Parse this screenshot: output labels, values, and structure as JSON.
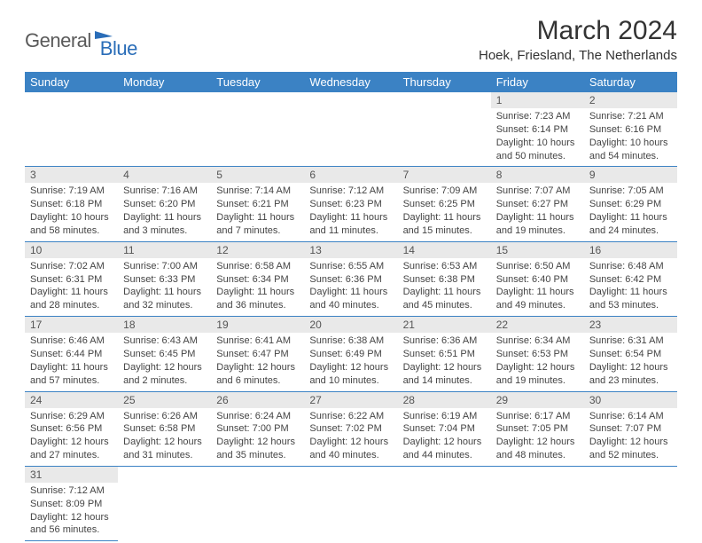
{
  "logo": {
    "text_a": "General",
    "text_b": "Blue"
  },
  "title": "March 2024",
  "location": "Hoek, Friesland, The Netherlands",
  "colors": {
    "header_bg": "#3b82c4",
    "header_text": "#ffffff",
    "daynum_bg": "#e9e9e9",
    "border": "#3b82c4",
    "logo_gray": "#5a5a5a",
    "logo_blue": "#2a6db8"
  },
  "day_headers": [
    "Sunday",
    "Monday",
    "Tuesday",
    "Wednesday",
    "Thursday",
    "Friday",
    "Saturday"
  ],
  "weeks": [
    {
      "nums": [
        "",
        "",
        "",
        "",
        "",
        "1",
        "2"
      ],
      "details": [
        {
          "sunrise": "",
          "sunset": "",
          "daylight": ""
        },
        {
          "sunrise": "",
          "sunset": "",
          "daylight": ""
        },
        {
          "sunrise": "",
          "sunset": "",
          "daylight": ""
        },
        {
          "sunrise": "",
          "sunset": "",
          "daylight": ""
        },
        {
          "sunrise": "",
          "sunset": "",
          "daylight": ""
        },
        {
          "sunrise": "Sunrise: 7:23 AM",
          "sunset": "Sunset: 6:14 PM",
          "daylight": "Daylight: 10 hours and 50 minutes."
        },
        {
          "sunrise": "Sunrise: 7:21 AM",
          "sunset": "Sunset: 6:16 PM",
          "daylight": "Daylight: 10 hours and 54 minutes."
        }
      ]
    },
    {
      "nums": [
        "3",
        "4",
        "5",
        "6",
        "7",
        "8",
        "9"
      ],
      "details": [
        {
          "sunrise": "Sunrise: 7:19 AM",
          "sunset": "Sunset: 6:18 PM",
          "daylight": "Daylight: 10 hours and 58 minutes."
        },
        {
          "sunrise": "Sunrise: 7:16 AM",
          "sunset": "Sunset: 6:20 PM",
          "daylight": "Daylight: 11 hours and 3 minutes."
        },
        {
          "sunrise": "Sunrise: 7:14 AM",
          "sunset": "Sunset: 6:21 PM",
          "daylight": "Daylight: 11 hours and 7 minutes."
        },
        {
          "sunrise": "Sunrise: 7:12 AM",
          "sunset": "Sunset: 6:23 PM",
          "daylight": "Daylight: 11 hours and 11 minutes."
        },
        {
          "sunrise": "Sunrise: 7:09 AM",
          "sunset": "Sunset: 6:25 PM",
          "daylight": "Daylight: 11 hours and 15 minutes."
        },
        {
          "sunrise": "Sunrise: 7:07 AM",
          "sunset": "Sunset: 6:27 PM",
          "daylight": "Daylight: 11 hours and 19 minutes."
        },
        {
          "sunrise": "Sunrise: 7:05 AM",
          "sunset": "Sunset: 6:29 PM",
          "daylight": "Daylight: 11 hours and 24 minutes."
        }
      ]
    },
    {
      "nums": [
        "10",
        "11",
        "12",
        "13",
        "14",
        "15",
        "16"
      ],
      "details": [
        {
          "sunrise": "Sunrise: 7:02 AM",
          "sunset": "Sunset: 6:31 PM",
          "daylight": "Daylight: 11 hours and 28 minutes."
        },
        {
          "sunrise": "Sunrise: 7:00 AM",
          "sunset": "Sunset: 6:33 PM",
          "daylight": "Daylight: 11 hours and 32 minutes."
        },
        {
          "sunrise": "Sunrise: 6:58 AM",
          "sunset": "Sunset: 6:34 PM",
          "daylight": "Daylight: 11 hours and 36 minutes."
        },
        {
          "sunrise": "Sunrise: 6:55 AM",
          "sunset": "Sunset: 6:36 PM",
          "daylight": "Daylight: 11 hours and 40 minutes."
        },
        {
          "sunrise": "Sunrise: 6:53 AM",
          "sunset": "Sunset: 6:38 PM",
          "daylight": "Daylight: 11 hours and 45 minutes."
        },
        {
          "sunrise": "Sunrise: 6:50 AM",
          "sunset": "Sunset: 6:40 PM",
          "daylight": "Daylight: 11 hours and 49 minutes."
        },
        {
          "sunrise": "Sunrise: 6:48 AM",
          "sunset": "Sunset: 6:42 PM",
          "daylight": "Daylight: 11 hours and 53 minutes."
        }
      ]
    },
    {
      "nums": [
        "17",
        "18",
        "19",
        "20",
        "21",
        "22",
        "23"
      ],
      "details": [
        {
          "sunrise": "Sunrise: 6:46 AM",
          "sunset": "Sunset: 6:44 PM",
          "daylight": "Daylight: 11 hours and 57 minutes."
        },
        {
          "sunrise": "Sunrise: 6:43 AM",
          "sunset": "Sunset: 6:45 PM",
          "daylight": "Daylight: 12 hours and 2 minutes."
        },
        {
          "sunrise": "Sunrise: 6:41 AM",
          "sunset": "Sunset: 6:47 PM",
          "daylight": "Daylight: 12 hours and 6 minutes."
        },
        {
          "sunrise": "Sunrise: 6:38 AM",
          "sunset": "Sunset: 6:49 PM",
          "daylight": "Daylight: 12 hours and 10 minutes."
        },
        {
          "sunrise": "Sunrise: 6:36 AM",
          "sunset": "Sunset: 6:51 PM",
          "daylight": "Daylight: 12 hours and 14 minutes."
        },
        {
          "sunrise": "Sunrise: 6:34 AM",
          "sunset": "Sunset: 6:53 PM",
          "daylight": "Daylight: 12 hours and 19 minutes."
        },
        {
          "sunrise": "Sunrise: 6:31 AM",
          "sunset": "Sunset: 6:54 PM",
          "daylight": "Daylight: 12 hours and 23 minutes."
        }
      ]
    },
    {
      "nums": [
        "24",
        "25",
        "26",
        "27",
        "28",
        "29",
        "30"
      ],
      "details": [
        {
          "sunrise": "Sunrise: 6:29 AM",
          "sunset": "Sunset: 6:56 PM",
          "daylight": "Daylight: 12 hours and 27 minutes."
        },
        {
          "sunrise": "Sunrise: 6:26 AM",
          "sunset": "Sunset: 6:58 PM",
          "daylight": "Daylight: 12 hours and 31 minutes."
        },
        {
          "sunrise": "Sunrise: 6:24 AM",
          "sunset": "Sunset: 7:00 PM",
          "daylight": "Daylight: 12 hours and 35 minutes."
        },
        {
          "sunrise": "Sunrise: 6:22 AM",
          "sunset": "Sunset: 7:02 PM",
          "daylight": "Daylight: 12 hours and 40 minutes."
        },
        {
          "sunrise": "Sunrise: 6:19 AM",
          "sunset": "Sunset: 7:04 PM",
          "daylight": "Daylight: 12 hours and 44 minutes."
        },
        {
          "sunrise": "Sunrise: 6:17 AM",
          "sunset": "Sunset: 7:05 PM",
          "daylight": "Daylight: 12 hours and 48 minutes."
        },
        {
          "sunrise": "Sunrise: 6:14 AM",
          "sunset": "Sunset: 7:07 PM",
          "daylight": "Daylight: 12 hours and 52 minutes."
        }
      ]
    },
    {
      "nums": [
        "31",
        "",
        "",
        "",
        "",
        "",
        ""
      ],
      "details": [
        {
          "sunrise": "Sunrise: 7:12 AM",
          "sunset": "Sunset: 8:09 PM",
          "daylight": "Daylight: 12 hours and 56 minutes."
        },
        {
          "sunrise": "",
          "sunset": "",
          "daylight": ""
        },
        {
          "sunrise": "",
          "sunset": "",
          "daylight": ""
        },
        {
          "sunrise": "",
          "sunset": "",
          "daylight": ""
        },
        {
          "sunrise": "",
          "sunset": "",
          "daylight": ""
        },
        {
          "sunrise": "",
          "sunset": "",
          "daylight": ""
        },
        {
          "sunrise": "",
          "sunset": "",
          "daylight": ""
        }
      ]
    }
  ]
}
